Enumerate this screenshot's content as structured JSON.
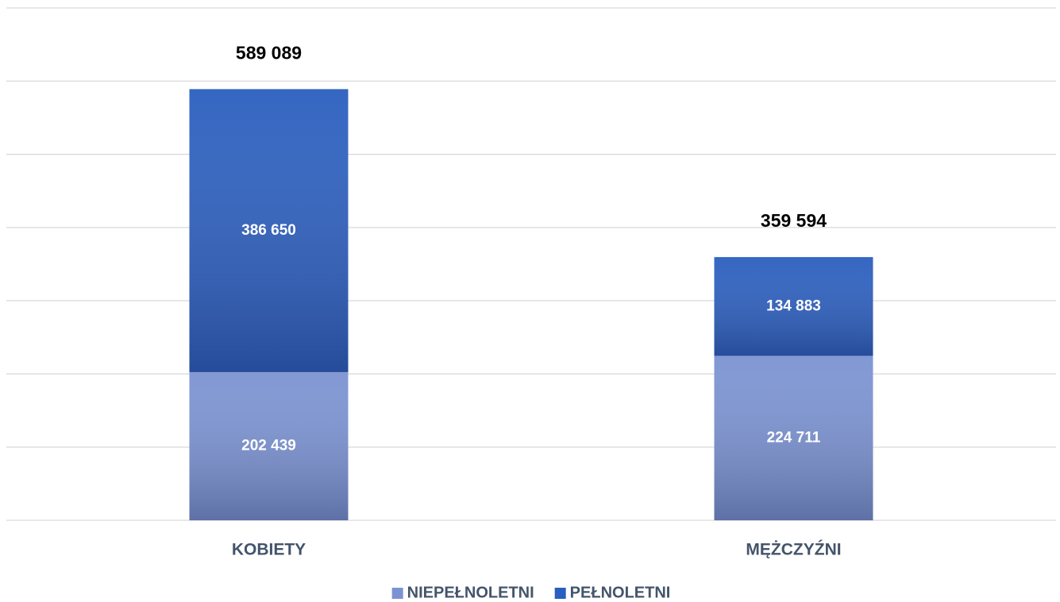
{
  "chart_data": {
    "type": "stacked_bar",
    "categories": [
      "KOBIETY",
      "MĘŻCZYŹNI"
    ],
    "series": [
      {
        "name": "NIEPEŁNOLETNI",
        "color": "#7b93d2",
        "values": [
          202439,
          224711
        ],
        "value_labels": [
          "202 439",
          "224 711"
        ]
      },
      {
        "name": "PEŁNOLETNI",
        "color": "#2a5ebf",
        "values": [
          386650,
          134883
        ],
        "value_labels": [
          "386 650",
          "134 883"
        ]
      }
    ],
    "totals": [
      589089,
      359594
    ],
    "total_labels": [
      "589 089",
      "359 594"
    ],
    "ylim": [
      0,
      700000
    ],
    "yticks": [
      0,
      100000,
      200000,
      300000,
      400000,
      500000,
      600000,
      700000
    ],
    "grid": true,
    "legend": "bottom"
  }
}
